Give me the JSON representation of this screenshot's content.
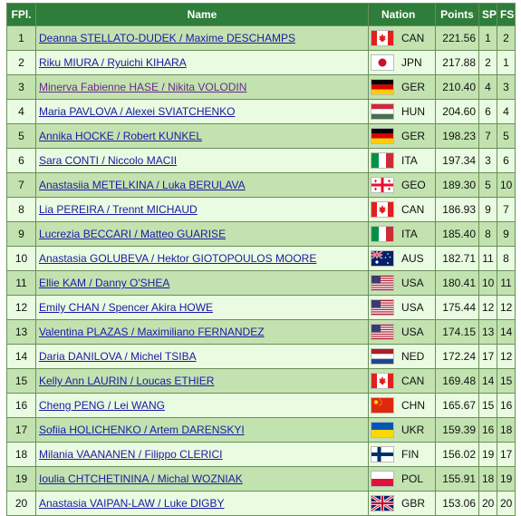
{
  "headers": {
    "fpl": "FPl.",
    "name": "Name",
    "nation": "Nation",
    "points": "Points",
    "sp": "SP",
    "fs": "FS"
  },
  "rows": [
    {
      "fpl": "1",
      "name": "Deanna STELLATO-DUDEK / Maxime DESCHAMPS",
      "flag": "canada-flag-icon",
      "nation": "CAN",
      "points": "221.56",
      "sp": "1",
      "fs": "2"
    },
    {
      "fpl": "2",
      "name": "Riku MIURA / Ryuichi KIHARA",
      "flag": "japan-flag-icon",
      "nation": "JPN",
      "points": "217.88",
      "sp": "2",
      "fs": "1"
    },
    {
      "fpl": "3",
      "name": "Minerva Fabienne HASE / Nikita VOLODIN",
      "flag": "germany-flag-icon",
      "nation": "GER",
      "points": "210.40",
      "sp": "4",
      "fs": "3",
      "visited": true
    },
    {
      "fpl": "4",
      "name": "Maria PAVLOVA / Alexei SVIATCHENKO",
      "flag": "hungary-flag-icon",
      "nation": "HUN",
      "points": "204.60",
      "sp": "6",
      "fs": "4"
    },
    {
      "fpl": "5",
      "name": "Annika HOCKE / Robert KUNKEL",
      "flag": "germany-flag-icon",
      "nation": "GER",
      "points": "198.23",
      "sp": "7",
      "fs": "5"
    },
    {
      "fpl": "6",
      "name": "Sara CONTI / Niccolo MACII",
      "flag": "italy-flag-icon",
      "nation": "ITA",
      "points": "197.34",
      "sp": "3",
      "fs": "6"
    },
    {
      "fpl": "7",
      "name": "Anastasiia METELKINA / Luka BERULAVA",
      "flag": "georgia-flag-icon",
      "nation": "GEO",
      "points": "189.30",
      "sp": "5",
      "fs": "10"
    },
    {
      "fpl": "8",
      "name": "Lia PEREIRA / Trennt MICHAUD",
      "flag": "canada-flag-icon",
      "nation": "CAN",
      "points": "186.93",
      "sp": "9",
      "fs": "7"
    },
    {
      "fpl": "9",
      "name": "Lucrezia BECCARI / Matteo GUARISE",
      "flag": "italy-flag-icon",
      "nation": "ITA",
      "points": "185.40",
      "sp": "8",
      "fs": "9"
    },
    {
      "fpl": "10",
      "name": "Anastasia GOLUBEVA / Hektor GIOTOPOULOS MOORE",
      "flag": "australia-flag-icon",
      "nation": "AUS",
      "points": "182.71",
      "sp": "11",
      "fs": "8"
    },
    {
      "fpl": "11",
      "name": "Ellie KAM / Danny O'SHEA",
      "flag": "usa-flag-icon",
      "nation": "USA",
      "points": "180.41",
      "sp": "10",
      "fs": "11"
    },
    {
      "fpl": "12",
      "name": "Emily CHAN / Spencer Akira HOWE",
      "flag": "usa-flag-icon",
      "nation": "USA",
      "points": "175.44",
      "sp": "12",
      "fs": "12"
    },
    {
      "fpl": "13",
      "name": "Valentina PLAZAS / Maximiliano FERNANDEZ",
      "flag": "usa-flag-icon",
      "nation": "USA",
      "points": "174.15",
      "sp": "13",
      "fs": "14"
    },
    {
      "fpl": "14",
      "name": "Daria DANILOVA / Michel TSIBA",
      "flag": "netherlands-flag-icon",
      "nation": "NED",
      "points": "172.24",
      "sp": "17",
      "fs": "12"
    },
    {
      "fpl": "15",
      "name": "Kelly Ann LAURIN / Loucas ETHIER",
      "flag": "canada-flag-icon",
      "nation": "CAN",
      "points": "169.48",
      "sp": "14",
      "fs": "15"
    },
    {
      "fpl": "16",
      "name": "Cheng PENG / Lei WANG",
      "flag": "china-flag-icon",
      "nation": "CHN",
      "points": "165.67",
      "sp": "15",
      "fs": "16"
    },
    {
      "fpl": "17",
      "name": "Sofiia HOLICHENKO / Artem DARENSKYI",
      "flag": "ukraine-flag-icon",
      "nation": "UKR",
      "points": "159.39",
      "sp": "16",
      "fs": "18"
    },
    {
      "fpl": "18",
      "name": "Milania VAANANEN / Filippo CLERICI",
      "flag": "finland-flag-icon",
      "nation": "FIN",
      "points": "156.02",
      "sp": "19",
      "fs": "17"
    },
    {
      "fpl": "19",
      "name": "Ioulia CHTCHETININA / Michal WOZNIAK",
      "flag": "poland-flag-icon",
      "nation": "POL",
      "points": "155.91",
      "sp": "18",
      "fs": "19"
    },
    {
      "fpl": "20",
      "name": "Anastasia VAIPAN-LAW / Luke DIGBY",
      "flag": "uk-flag-icon",
      "nation": "GBR",
      "points": "153.06",
      "sp": "20",
      "fs": "20"
    }
  ]
}
